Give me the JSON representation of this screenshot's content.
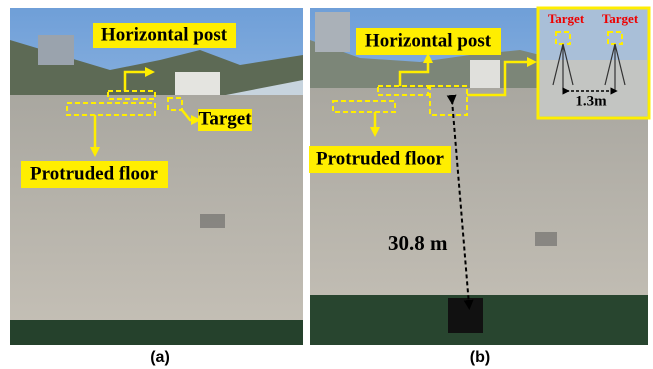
{
  "panels": [
    {
      "caption": "(a)",
      "labels": {
        "post": "Horizontal post",
        "target": "Target",
        "floor": "Protruded floor"
      }
    },
    {
      "caption": "(b)",
      "labels": {
        "post": "Horizontal post",
        "floor": "Protruded floor",
        "distance": "30.8 m"
      },
      "inset": {
        "target_left": "Target",
        "target_right": "Target",
        "spacing": "1.3m"
      }
    }
  ]
}
